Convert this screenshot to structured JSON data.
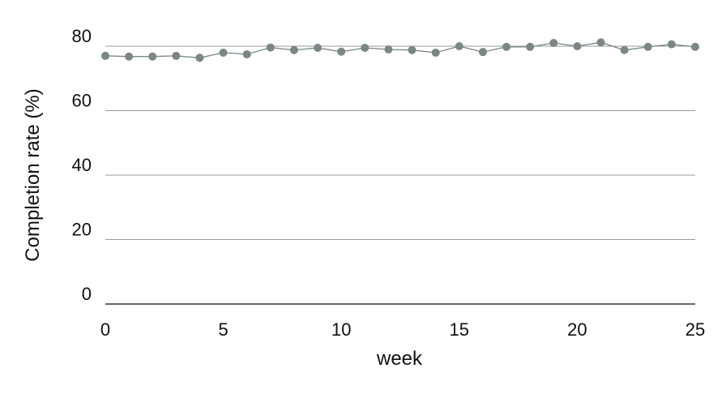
{
  "chart_data": {
    "type": "line",
    "title": "",
    "xlabel": "week",
    "ylabel": "Completion rate (%)",
    "xlim": [
      0,
      25
    ],
    "ylim": [
      0,
      80
    ],
    "xticks": [
      0,
      5,
      10,
      15,
      20,
      25
    ],
    "yticks": [
      0,
      20,
      40,
      60,
      80
    ],
    "grid": "horizontal",
    "colors": {
      "series": "#7a8784",
      "grid": "#9a9a9a",
      "axis": "#333333",
      "text": "#111111"
    },
    "series": [
      {
        "x": [
          0,
          1,
          2,
          3,
          4,
          5,
          6,
          7,
          8,
          9,
          10,
          11,
          12,
          13,
          14,
          15,
          16,
          17,
          18,
          19,
          20,
          21,
          22,
          23,
          24,
          25
        ],
        "values": [
          77.0,
          76.8,
          76.8,
          77.0,
          76.4,
          78.0,
          77.5,
          79.6,
          78.8,
          79.5,
          78.3,
          79.5,
          79.0,
          78.8,
          78.0,
          80.0,
          78.2,
          79.8,
          79.8,
          81.0,
          80.0,
          81.2,
          78.8,
          79.8,
          80.6,
          79.8
        ]
      }
    ]
  }
}
